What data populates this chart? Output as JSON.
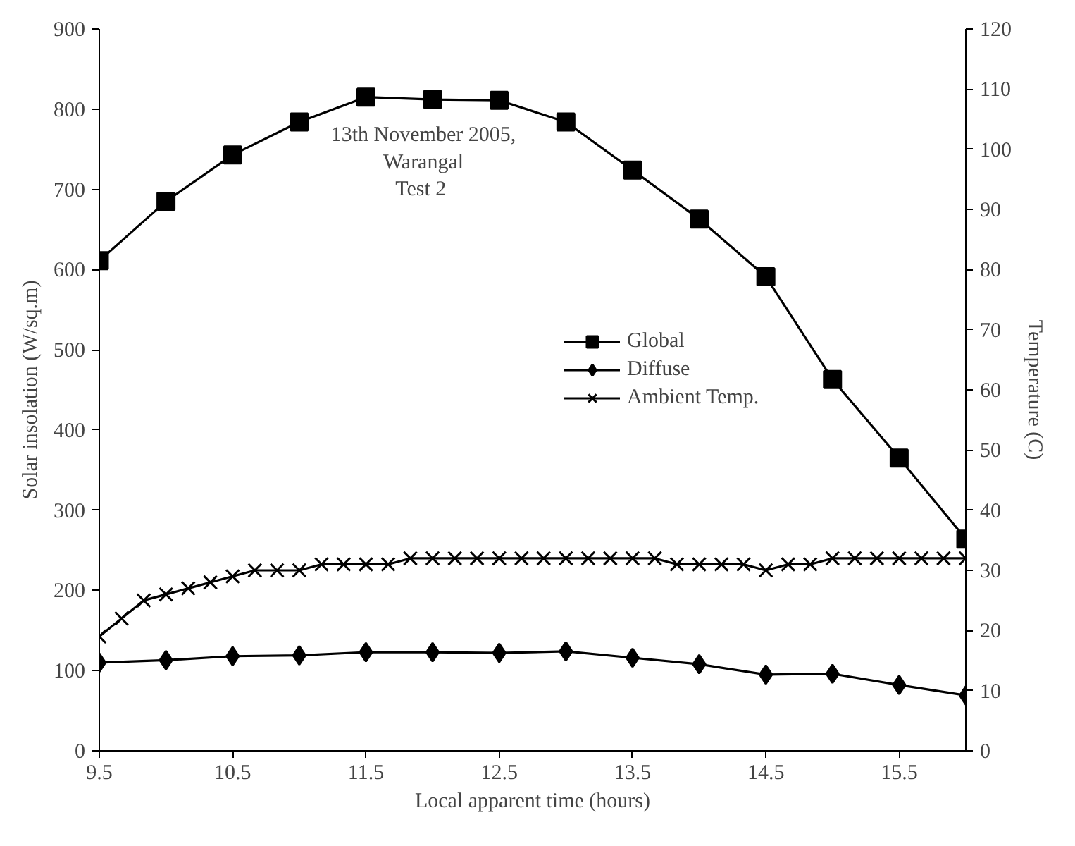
{
  "chart_data": {
    "type": "line",
    "xlabel": "Local apparent time (hours)",
    "ylabel": "Solar insolation (W/sq.m)",
    "y2label": "Temperature (C)",
    "annotations": [
      "13th November 2005,\nWarangal\nTest  2"
    ],
    "xlim": [
      9.5,
      16
    ],
    "xticks": [
      9.5,
      10.5,
      11.5,
      12.5,
      13.5,
      14.5,
      15.5
    ],
    "ylim": [
      0,
      900
    ],
    "yticks": [
      0,
      100,
      200,
      300,
      400,
      500,
      600,
      700,
      800,
      900
    ],
    "y2lim": [
      0,
      120
    ],
    "y2ticks": [
      0,
      10,
      20,
      30,
      40,
      50,
      60,
      70,
      80,
      90,
      100,
      110,
      120
    ],
    "grid": false,
    "legend": "center",
    "line_style": "solid",
    "x": [
      9.5,
      10,
      10.5,
      11,
      11.5,
      12,
      12.5,
      13,
      13.5,
      14,
      14.5,
      15,
      15.5,
      16
    ],
    "series": [
      {
        "name": "Global",
        "color": "#000000",
        "marker": "square",
        "values": [
          611,
          685,
          743,
          784,
          815,
          812,
          811,
          784,
          724,
          663,
          591,
          463,
          365,
          264
        ]
      },
      {
        "name": "Diffuse",
        "color": "#000000",
        "marker": "diamond",
        "values": [
          110,
          113,
          118,
          119,
          123,
          123,
          122,
          124,
          116,
          108,
          95,
          96,
          82,
          69
        ]
      },
      {
        "name": "Ambient Temp.",
        "color": "#000000",
        "marker": "cross",
        "axis": "y2",
        "x": [
          9.5,
          9.667,
          9.833,
          10,
          10.167,
          10.333,
          10.5,
          10.667,
          10.833,
          11,
          11.167,
          11.333,
          11.5,
          11.667,
          11.833,
          12,
          12.167,
          12.333,
          12.5,
          12.667,
          12.833,
          13,
          13.167,
          13.333,
          13.5,
          13.667,
          13.833,
          14,
          14.167,
          14.333,
          14.5,
          14.667,
          14.833,
          15,
          15.167,
          15.333,
          15.5,
          15.667,
          15.833,
          16
        ],
        "values": [
          19,
          22,
          25,
          26,
          27,
          28,
          29,
          30,
          30,
          30,
          31,
          31,
          31,
          31,
          32,
          32,
          32,
          32,
          32,
          32,
          32,
          32,
          32,
          32,
          32,
          32,
          31,
          31,
          31,
          31,
          30,
          31,
          31,
          32,
          32,
          32,
          32,
          32,
          32,
          32
        ]
      }
    ]
  }
}
